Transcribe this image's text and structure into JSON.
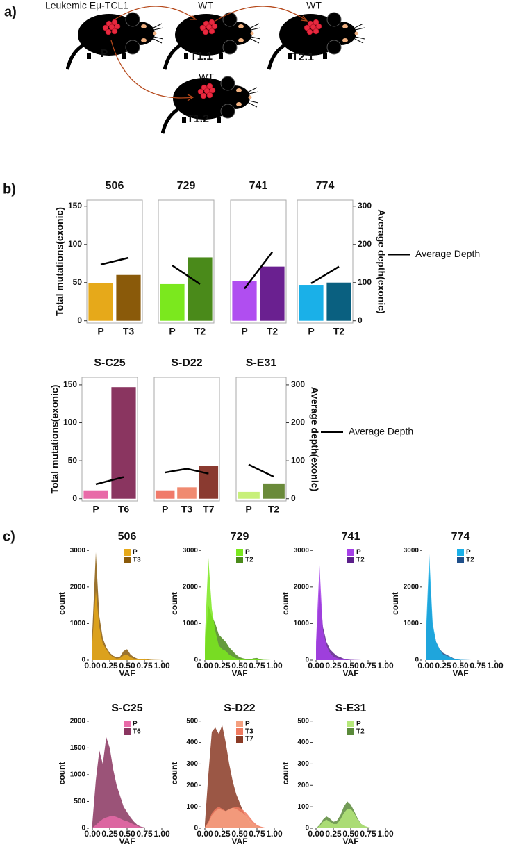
{
  "panel_labels": [
    "a)",
    "b)",
    "c)"
  ],
  "diagram": {
    "source_label": "Leukemic Eμ-TCL1",
    "nodes": [
      {
        "label": "P"
      },
      {
        "label": "T1.1",
        "strain": "WT"
      },
      {
        "label": "T2.1",
        "strain": "WT"
      },
      {
        "label": "T1.2",
        "strain": "WT"
      }
    ]
  },
  "chart_data": [
    {
      "type": "bar",
      "title": "506",
      "categories": [
        "P",
        "T3"
      ],
      "values": [
        49,
        60
      ],
      "colors": [
        "#e6a91a",
        "#8a5a0a"
      ],
      "series": [
        {
          "values": [
            147,
            165
          ],
          "axis": "y2",
          "color": "#000000"
        }
      ],
      "ylim": [
        -3,
        158
      ],
      "y2lim": [
        -6,
        316
      ],
      "yticks": [
        0,
        50,
        100,
        150
      ],
      "ylabel": "Total mutations(exonic)"
    },
    {
      "type": "bar",
      "title": "729",
      "categories": [
        "P",
        "T2"
      ],
      "values": [
        48,
        83
      ],
      "colors": [
        "#7be81e",
        "#4a8a1a"
      ],
      "series": [
        {
          "values": [
            145,
            96
          ],
          "axis": "y2",
          "color": "#000000"
        }
      ],
      "ylim": [
        -3,
        158
      ],
      "y2lim": [
        -6,
        316
      ]
    },
    {
      "type": "bar",
      "title": "741",
      "categories": [
        "P",
        "T2"
      ],
      "values": [
        52,
        71
      ],
      "colors": [
        "#b04ef0",
        "#6a2090"
      ],
      "series": [
        {
          "values": [
            84,
            180
          ],
          "axis": "y2",
          "color": "#000000"
        }
      ],
      "ylim": [
        -3,
        158
      ],
      "y2lim": [
        -6,
        316
      ]
    },
    {
      "type": "bar",
      "title": "774",
      "categories": [
        "P",
        "T2"
      ],
      "values": [
        47,
        50
      ],
      "colors": [
        "#1ab0e8",
        "#0a6080"
      ],
      "series": [
        {
          "name": "Average Depth",
          "values": [
            98,
            142
          ],
          "axis": "y2",
          "color": "#000000"
        }
      ],
      "ylim": [
        -3,
        158
      ],
      "y2lim": [
        -6,
        316
      ],
      "y2ticks": [
        0,
        100,
        200,
        300
      ],
      "y2label": "Average depth(exonic)"
    },
    {
      "type": "bar",
      "title": "S-C25",
      "categories": [
        "P",
        "T6"
      ],
      "values": [
        11,
        147
      ],
      "colors": [
        "#e86aa8",
        "#8a3560"
      ],
      "series": [
        {
          "values": [
            38,
            57
          ],
          "axis": "y2",
          "color": "#000000"
        }
      ],
      "ylim": [
        -3,
        160
      ],
      "y2lim": [
        -6,
        320
      ],
      "yticks": [
        0,
        50,
        100,
        150
      ],
      "ylabel": "Total mutations(exonic)"
    },
    {
      "type": "bar",
      "title": "S-D22",
      "categories": [
        "P",
        "T3",
        "T7"
      ],
      "values": [
        11,
        15,
        43
      ],
      "colors": [
        "#f07a6a",
        "#f08a70",
        "#8a3a30"
      ],
      "series": [
        {
          "values": [
            69,
            79,
            66
          ],
          "axis": "y2",
          "color": "#000000"
        }
      ],
      "ylim": [
        -3,
        160
      ],
      "y2lim": [
        -6,
        320
      ]
    },
    {
      "type": "bar",
      "title": "S-E31",
      "categories": [
        "P",
        "T2"
      ],
      "values": [
        9,
        20
      ],
      "colors": [
        "#c8f07a",
        "#6a8a3a"
      ],
      "series": [
        {
          "name": "Average Depth",
          "values": [
            90,
            58
          ],
          "axis": "y2",
          "color": "#000000"
        }
      ],
      "ylim": [
        -3,
        160
      ],
      "y2lim": [
        -6,
        320
      ],
      "y2ticks": [
        0,
        100,
        200,
        300
      ],
      "y2label": "Average depth(exonic)"
    },
    {
      "type": "area",
      "title": "506",
      "xlabel": "VAF",
      "ylabel": "count",
      "x": [
        0,
        0.05,
        0.1,
        0.15,
        0.2,
        0.25,
        0.3,
        0.35,
        0.4,
        0.45,
        0.5,
        0.55,
        0.6,
        0.65,
        0.7,
        0.75,
        0.8,
        0.85,
        0.9,
        0.95,
        1
      ],
      "series": [
        {
          "name": "P",
          "color": "#e6a91a",
          "values": [
            500,
            1900,
            900,
            450,
            300,
            150,
            80,
            40,
            60,
            130,
            150,
            80,
            40,
            20,
            30,
            30,
            10,
            5,
            3,
            2,
            0
          ]
        },
        {
          "name": "T3",
          "color": "#8a5a0a",
          "values": [
            800,
            2950,
            1200,
            600,
            350,
            200,
            120,
            80,
            100,
            250,
            300,
            150,
            80,
            40,
            20,
            40,
            20,
            10,
            5,
            2,
            0
          ]
        }
      ],
      "xlim": [
        -0.05,
        1.05
      ],
      "xticks": [
        {
          "value": 0,
          "label": "0.00"
        },
        0.25,
        {
          "value": 0.5,
          "label": "0.50"
        },
        0.75,
        {
          "value": 1,
          "label": "1.00"
        }
      ],
      "ylim": [
        0,
        3100
      ],
      "yticks": [
        0,
        1000,
        2000,
        3000
      ]
    },
    {
      "type": "area",
      "title": "729",
      "xlabel": "VAF",
      "ylabel": "count",
      "x": [
        0,
        0.05,
        0.1,
        0.15,
        0.2,
        0.25,
        0.3,
        0.35,
        0.4,
        0.45,
        0.5,
        0.55,
        0.6,
        0.65,
        0.7,
        0.75,
        0.8,
        0.85,
        0.9,
        0.95,
        1
      ],
      "series": [
        {
          "name": "P",
          "color": "#7be81e",
          "values": [
            600,
            2800,
            1400,
            800,
            400,
            300,
            250,
            150,
            100,
            50,
            30,
            20,
            10,
            10,
            20,
            20,
            10,
            5,
            2,
            0,
            0
          ]
        },
        {
          "name": "T2",
          "color": "#4a8a1a",
          "values": [
            300,
            1500,
            1200,
            1000,
            700,
            600,
            500,
            350,
            250,
            150,
            80,
            50,
            30,
            20,
            50,
            60,
            20,
            5,
            2,
            0,
            0
          ]
        }
      ],
      "xlim": [
        -0.05,
        1.05
      ],
      "xticks": [
        {
          "value": 0,
          "label": "0.00"
        },
        0.25,
        {
          "value": 0.5,
          "label": "0.50"
        },
        0.75,
        {
          "value": 1,
          "label": "1.00"
        }
      ],
      "ylim": [
        0,
        3100
      ],
      "yticks": [
        0,
        1000,
        2000,
        3000
      ]
    },
    {
      "type": "area",
      "title": "741",
      "xlabel": "VAF",
      "ylabel": "count",
      "x": [
        0,
        0.05,
        0.1,
        0.15,
        0.2,
        0.25,
        0.3,
        0.35,
        0.4,
        0.45,
        0.5,
        0.55,
        0.6,
        0.65,
        0.7,
        0.75,
        0.8,
        0.85,
        0.9,
        0.95,
        1
      ],
      "series": [
        {
          "name": "P",
          "color": "#a640e8",
          "values": [
            500,
            2600,
            800,
            400,
            200,
            100,
            60,
            30,
            20,
            10,
            5,
            3,
            2,
            1,
            0,
            0,
            0,
            0,
            0,
            0,
            0
          ]
        },
        {
          "name": "T2",
          "color": "#5b1f8a",
          "values": [
            300,
            2000,
            900,
            500,
            300,
            200,
            120,
            80,
            40,
            20,
            10,
            5,
            3,
            1,
            0,
            0,
            0,
            0,
            0,
            0,
            0
          ]
        }
      ],
      "xlim": [
        -0.05,
        1.05
      ],
      "xticks": [
        {
          "value": 0,
          "label": "0.00"
        },
        0.25,
        {
          "value": 0.5,
          "label": "0.50"
        },
        0.75,
        {
          "value": 1,
          "label": "1.00"
        }
      ],
      "ylim": [
        0,
        3100
      ],
      "yticks": [
        0,
        1000,
        2000,
        3000
      ]
    },
    {
      "type": "area",
      "title": "774",
      "xlabel": "VAF",
      "ylabel": "count",
      "x": [
        0,
        0.05,
        0.1,
        0.15,
        0.2,
        0.25,
        0.3,
        0.35,
        0.4,
        0.45,
        0.5,
        0.55,
        0.6,
        0.65,
        0.7,
        0.75,
        0.8,
        0.85,
        0.9,
        0.95,
        1
      ],
      "series": [
        {
          "name": "P",
          "color": "#1ab0e8",
          "values": [
            600,
            2900,
            1000,
            500,
            300,
            150,
            120,
            80,
            40,
            20,
            10,
            5,
            3,
            1,
            0,
            0,
            0,
            0,
            0,
            0,
            0
          ]
        },
        {
          "name": "T2",
          "color": "#1f4f8a",
          "values": [
            400,
            2500,
            900,
            500,
            300,
            200,
            150,
            100,
            50,
            20,
            10,
            5,
            3,
            1,
            0,
            0,
            0,
            0,
            0,
            0,
            0
          ]
        }
      ],
      "xlim": [
        -0.05,
        1.05
      ],
      "xticks": [
        {
          "value": 0,
          "label": "0.00"
        },
        0.25,
        {
          "value": 0.5,
          "label": "0.50"
        },
        0.75,
        {
          "value": 1,
          "label": "1.00"
        }
      ],
      "ylim": [
        0,
        3100
      ],
      "yticks": [
        0,
        1000,
        2000,
        3000
      ]
    },
    {
      "type": "area",
      "title": "S-C25",
      "xlabel": "VAF",
      "ylabel": "count",
      "x": [
        0,
        0.05,
        0.1,
        0.15,
        0.2,
        0.25,
        0.3,
        0.35,
        0.4,
        0.45,
        0.5,
        0.55,
        0.6,
        0.65,
        0.7,
        0.75,
        0.8,
        0.85,
        0.9,
        0.95,
        1
      ],
      "series": [
        {
          "name": "P",
          "color": "#e86aa8",
          "values": [
            10,
            60,
            120,
            170,
            200,
            220,
            230,
            210,
            180,
            150,
            130,
            100,
            70,
            40,
            20,
            10,
            5,
            2,
            0,
            0,
            0
          ]
        },
        {
          "name": "T6",
          "color": "#8a3560",
          "values": [
            100,
            900,
            1450,
            1200,
            1700,
            1500,
            1100,
            800,
            600,
            400,
            300,
            200,
            120,
            60,
            30,
            15,
            8,
            4,
            2,
            0,
            0
          ]
        }
      ],
      "xlim": [
        -0.05,
        1.05
      ],
      "xticks": [
        {
          "value": 0,
          "label": "0.00"
        },
        0.25,
        {
          "value": 0.5,
          "label": "0.50"
        },
        0.75,
        {
          "value": 1,
          "label": "1.00"
        }
      ],
      "ylim": [
        0,
        2050
      ],
      "yticks": [
        0,
        500,
        1000,
        1500,
        2000
      ]
    },
    {
      "type": "area",
      "title": "S-D22",
      "xlabel": "VAF",
      "ylabel": "count",
      "x": [
        0,
        0.05,
        0.1,
        0.15,
        0.2,
        0.25,
        0.3,
        0.35,
        0.4,
        0.45,
        0.5,
        0.55,
        0.6,
        0.65,
        0.7,
        0.75,
        0.8,
        0.85,
        0.9,
        0.95,
        1
      ],
      "series": [
        {
          "name": "P",
          "color": "#f4a080",
          "values": [
            3,
            25,
            60,
            80,
            90,
            85,
            80,
            90,
            95,
            90,
            80,
            70,
            55,
            35,
            20,
            10,
            5,
            2,
            0,
            0,
            0
          ]
        },
        {
          "name": "T3",
          "color": "#f07a60",
          "values": [
            5,
            30,
            70,
            90,
            100,
            90,
            80,
            85,
            95,
            100,
            95,
            85,
            70,
            50,
            30,
            15,
            8,
            4,
            2,
            0,
            0
          ]
        },
        {
          "name": "T7",
          "color": "#8a3a25",
          "values": [
            20,
            250,
            450,
            470,
            440,
            480,
            400,
            300,
            220,
            160,
            120,
            80,
            50,
            25,
            15,
            10,
            5,
            2,
            0,
            0,
            0
          ]
        }
      ],
      "xlim": [
        -0.05,
        1.05
      ],
      "xticks": [
        {
          "value": 0,
          "label": "0.00"
        },
        0.25,
        {
          "value": 0.5,
          "label": "0.50"
        },
        0.75,
        {
          "value": 1,
          "label": "1.00"
        }
      ],
      "ylim": [
        0,
        512
      ],
      "yticks": [
        0,
        100,
        200,
        300,
        400,
        500
      ]
    },
    {
      "type": "area",
      "title": "S-E31",
      "xlabel": "VAF",
      "ylabel": "count",
      "x": [
        0,
        0.05,
        0.1,
        0.15,
        0.2,
        0.25,
        0.3,
        0.35,
        0.4,
        0.45,
        0.5,
        0.55,
        0.6,
        0.65,
        0.7,
        0.75,
        0.8,
        0.85,
        0.9,
        0.95,
        1
      ],
      "series": [
        {
          "name": "P",
          "color": "#b5e87a",
          "values": [
            0,
            10,
            30,
            40,
            30,
            20,
            20,
            40,
            70,
            90,
            90,
            70,
            40,
            20,
            10,
            5,
            2,
            0,
            0,
            0,
            0
          ]
        },
        {
          "name": "T2",
          "color": "#5a8a3a",
          "values": [
            0,
            15,
            40,
            55,
            45,
            30,
            35,
            60,
            100,
            125,
            110,
            80,
            45,
            20,
            10,
            5,
            2,
            0,
            0,
            0,
            0
          ]
        }
      ],
      "xlim": [
        -0.05,
        1.05
      ],
      "xticks": [
        {
          "value": 0,
          "label": "0.00"
        },
        0.25,
        {
          "value": 0.5,
          "label": "0.50"
        },
        0.75,
        {
          "value": 1,
          "label": "1.00"
        }
      ],
      "ylim": [
        0,
        512
      ],
      "yticks": [
        0,
        100,
        200,
        300,
        400,
        500
      ]
    }
  ]
}
